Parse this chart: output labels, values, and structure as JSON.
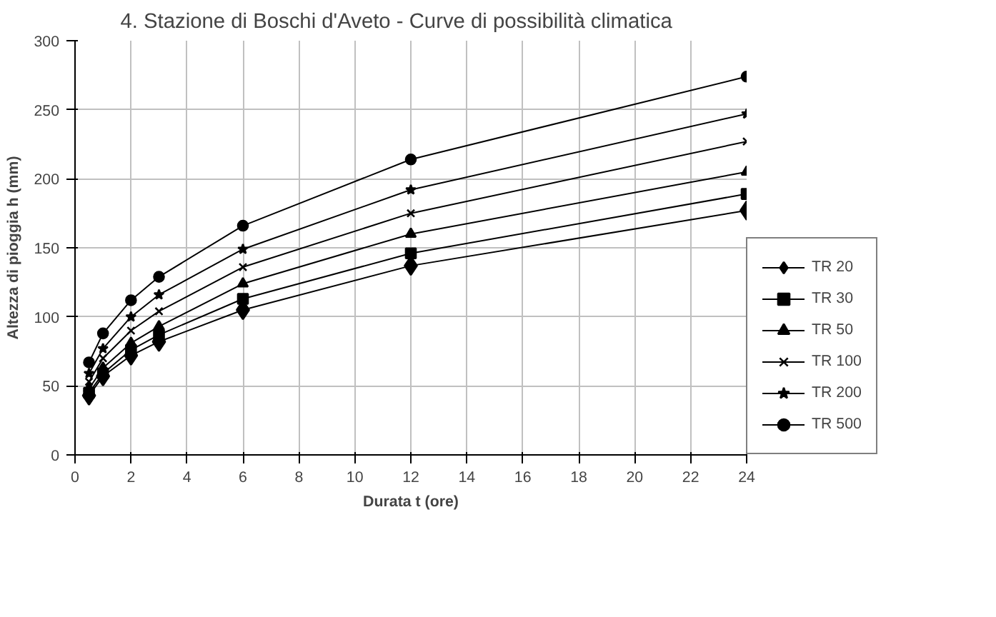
{
  "chart_data": {
    "type": "line",
    "title": "4.      Stazione di Boschi d'Aveto - Curve di possibilità climatica",
    "xlabel": "Durata t (ore)",
    "ylabel": "Altezza di pioggia h (mm)",
    "x": [
      0.5,
      1,
      2,
      3,
      6,
      12,
      24
    ],
    "series": [
      {
        "name": "TR 20",
        "color": "#000000",
        "marker": "diamond",
        "values": [
          43,
          57,
          72,
          82,
          105,
          137,
          177
        ]
      },
      {
        "name": "TR 30",
        "color": "#000000",
        "marker": "square",
        "values": [
          45,
          59,
          76,
          87,
          113,
          146,
          189
        ]
      },
      {
        "name": "TR 50",
        "color": "#000000",
        "marker": "triangle",
        "values": [
          48,
          63,
          81,
          93,
          124,
          160,
          205
        ]
      },
      {
        "name": "TR 100",
        "color": "#000000",
        "marker": "cross",
        "values": [
          53,
          70,
          90,
          104,
          136,
          175,
          227
        ]
      },
      {
        "name": "TR 200",
        "color": "#000000",
        "marker": "star",
        "values": [
          59,
          77,
          100,
          116,
          149,
          192,
          247
        ]
      },
      {
        "name": "TR 500",
        "color": "#000000",
        "marker": "circle",
        "values": [
          67,
          88,
          112,
          129,
          166,
          214,
          274
        ]
      }
    ],
    "xlim": [
      0,
      24
    ],
    "xticks": [
      0,
      2,
      4,
      6,
      8,
      10,
      12,
      14,
      16,
      18,
      20,
      22,
      24
    ],
    "ylim": [
      0,
      300
    ],
    "yticks": [
      0,
      50,
      100,
      150,
      200,
      250,
      300
    ],
    "grid": true,
    "legend": "right",
    "line_style": "solid"
  }
}
